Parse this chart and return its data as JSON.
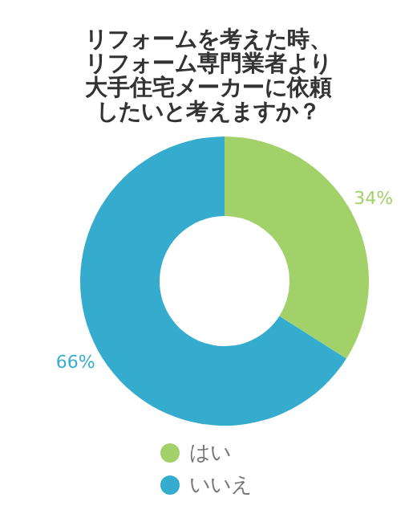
{
  "chart_data": {
    "type": "donut",
    "title": "リフォームを考えた時、リフォーム専門業者より大手住宅メーカーに依頼したいと考えますか？",
    "categories": [
      "はい",
      "いいえ"
    ],
    "values": [
      34,
      66
    ],
    "colors": [
      "#a2d16a",
      "#35acce"
    ],
    "value_labels": [
      "34%",
      "66%"
    ],
    "legend": "bottom"
  }
}
